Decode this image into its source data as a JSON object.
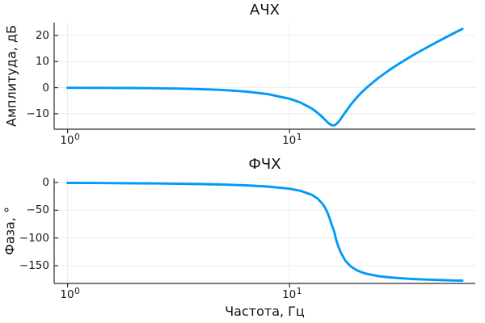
{
  "style": {
    "background": "#ffffff",
    "series_color": "#009af9",
    "grid_color": "#ebebeb",
    "axis_color": "#2b2b2b",
    "text_color": "#111111"
  },
  "chart_data": [
    {
      "type": "line",
      "title": "АЧХ",
      "ylabel": "Амплитуда, дБ",
      "xscale": "log",
      "xlim": [
        0.87,
        68.6
      ],
      "ylim": [
        -15.9,
        24.9
      ],
      "grid": true,
      "legend": "none",
      "yticks": [
        {
          "value": 20,
          "label": "20"
        },
        {
          "value": 10,
          "label": "10"
        },
        {
          "value": 0,
          "label": "0"
        },
        {
          "value": -10,
          "label": "−10"
        }
      ],
      "xticks": [
        {
          "value": 1,
          "base": "10",
          "exp": "0"
        },
        {
          "value": 10,
          "base": "10",
          "exp": "1"
        }
      ],
      "series": [
        {
          "name": "magnitude",
          "color": "#009af9",
          "x": [
            1.0,
            1.26,
            1.58,
            2.0,
            2.51,
            3.16,
            3.98,
            5.01,
            6.31,
            7.94,
            10.0,
            11.2,
            12.6,
            13.4,
            14.1,
            14.45,
            14.8,
            15.1,
            15.5,
            15.92,
            16.2,
            16.6,
            17.0,
            17.8,
            18.8,
            20.0,
            21.1,
            22.4,
            25.1,
            28.2,
            31.6,
            35.5,
            39.8,
            44.7,
            50.1,
            56.2,
            60.0
          ],
          "y": [
            -0.03,
            -0.06,
            -0.09,
            -0.14,
            -0.22,
            -0.35,
            -0.56,
            -0.89,
            -1.46,
            -2.41,
            -4.24,
            -5.71,
            -8.01,
            -9.7,
            -11.42,
            -12.33,
            -13.2,
            -13.84,
            -14.39,
            -14.42,
            -14.01,
            -13.1,
            -11.92,
            -9.45,
            -6.65,
            -3.89,
            -1.8,
            0.28,
            3.74,
            6.82,
            9.54,
            12.12,
            14.53,
            16.87,
            19.1,
            21.28,
            22.5
          ]
        }
      ]
    },
    {
      "type": "line",
      "title": "ФЧХ",
      "ylabel": "Фаза, °",
      "xlabel": "Частота, Гц",
      "xscale": "log",
      "xlim": [
        0.87,
        68.6
      ],
      "ylim": [
        -182,
        7.3
      ],
      "grid": true,
      "legend": "none",
      "yticks": [
        {
          "value": 0,
          "label": "0"
        },
        {
          "value": -50,
          "label": "−50"
        },
        {
          "value": -100,
          "label": "−100"
        },
        {
          "value": -150,
          "label": "−150"
        }
      ],
      "xticks": [
        {
          "value": 1,
          "base": "10",
          "exp": "0"
        },
        {
          "value": 10,
          "base": "10",
          "exp": "1"
        }
      ],
      "series": [
        {
          "name": "phase",
          "color": "#009af9",
          "x": [
            1.0,
            1.26,
            1.58,
            2.0,
            2.51,
            3.16,
            3.98,
            5.01,
            6.31,
            7.94,
            10.0,
            11.2,
            12.6,
            13.4,
            14.1,
            14.45,
            14.8,
            15.1,
            15.5,
            15.92,
            16.2,
            16.6,
            17.0,
            17.8,
            18.8,
            20.0,
            21.1,
            22.4,
            25.1,
            28.2,
            31.6,
            35.5,
            39.8,
            44.7,
            50.1,
            56.2,
            60.0
          ],
          "y": [
            -0.69,
            -0.87,
            -1.1,
            -1.4,
            -1.77,
            -2.25,
            -2.9,
            -3.82,
            -5.13,
            -7.2,
            -11.26,
            -15.0,
            -22.3,
            -29.4,
            -39.0,
            -45.7,
            -54.2,
            -63.0,
            -76.8,
            -90.0,
            -103.0,
            -115.9,
            -126.4,
            -140.7,
            -151.0,
            -158.0,
            -161.9,
            -164.9,
            -168.7,
            -171.1,
            -172.7,
            -174.0,
            -174.9,
            -175.6,
            -176.2,
            -176.7,
            -176.9
          ]
        }
      ]
    }
  ]
}
